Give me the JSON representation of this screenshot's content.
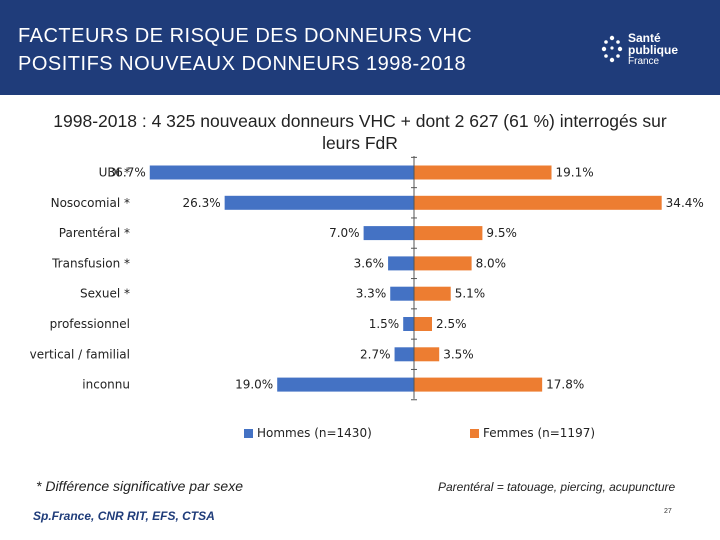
{
  "header": {
    "title_line1": "FACTEURS DE RISQUE DES DONNEURS VHC",
    "title_line2": "POSITIFS NOUVEAUX DONNEURS 1998-2018",
    "logo_line1": "Santé",
    "logo_line2": "publique",
    "logo_line3": "France"
  },
  "subtitle_line1": "1998-2018 : 4 325 nouveaux donneurs VHC + dont  2 627 (61 %) interrogés sur",
  "subtitle_line2": "leurs FdR",
  "colors": {
    "header_bg": "#1f3c7a",
    "hommes": "#4472c4",
    "femmes": "#ed7d31"
  },
  "chart_data": {
    "type": "bar",
    "orientation": "horizontal-butterfly",
    "categories": [
      "UDI *",
      "Nosocomial *",
      "Parentéral *",
      "Transfusion *",
      "Sexuel *",
      "professionnel",
      "vertical / familial",
      "inconnu"
    ],
    "series": [
      {
        "name": "Hommes (n=1430)",
        "values": [
          36.7,
          26.3,
          7.0,
          3.6,
          3.3,
          1.5,
          2.7,
          19.0
        ],
        "labels": [
          "36.7%",
          "26.3%",
          "7.0%",
          "3.6%",
          "3.3%",
          "1.5%",
          "2.7%",
          "19.0%"
        ]
      },
      {
        "name": "Femmes (n=1197)",
        "values": [
          19.1,
          34.4,
          9.5,
          8.0,
          5.1,
          2.5,
          3.5,
          17.8
        ],
        "labels": [
          "19.1%",
          "34.4%",
          "9.5%",
          "8.0%",
          "5.1%",
          "2.5%",
          "3.5%",
          "17.8%"
        ]
      }
    ],
    "legend_position": "bottom"
  },
  "notes": {
    "difference": "* Différence significative par sexe",
    "parenteral": "Parentéral  = tatouage, piercing, acupuncture"
  },
  "footer": {
    "source": "Sp.France, CNR RIT,  EFS, CTSA",
    "page": "27"
  }
}
